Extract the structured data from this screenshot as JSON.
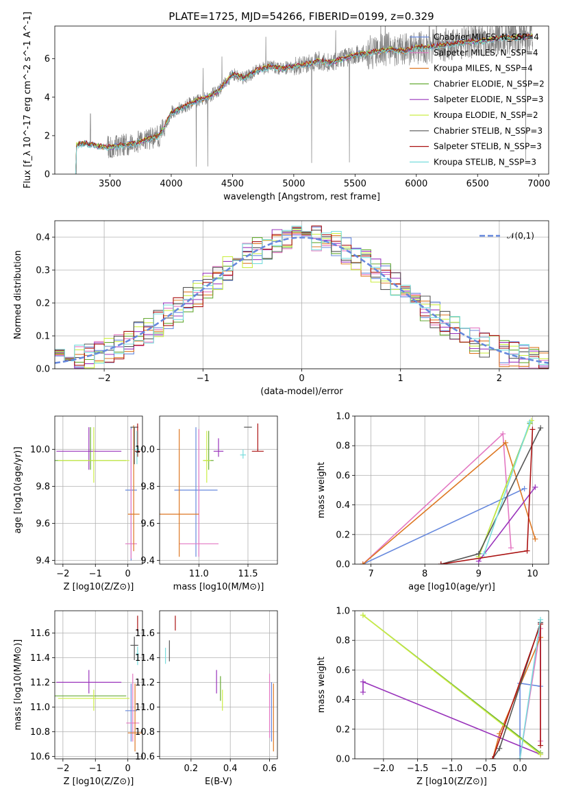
{
  "figure": {
    "title": "PLATE=1725, MJD=54266, FIBERID=0199, z=0.329"
  },
  "colors": {
    "data_gray": "#808080",
    "Chabrier MILES": "#6688dd",
    "Salpeter MILES": "#e377c2",
    "Kroupa MILES": "#dd7722",
    "Chabrier ELODIE": "#66aa33",
    "Salpeter ELODIE": "#9933bb",
    "Kroupa ELODIE": "#ccee44",
    "Chabrier STELIB": "#555555",
    "Salpeter STELIB": "#aa1111",
    "Kroupa STELIB": "#77dddd",
    "normal": "#6688dd"
  },
  "chart_data": [
    {
      "id": "spectrum",
      "type": "line",
      "xlabel": "wavelength [Angstrom, rest frame]",
      "ylabel": "Flux [f_λ 10^-17 erg cm^-2 s^-1 A^-1]",
      "xlim": [
        3050,
        7080
      ],
      "ylim": [
        0,
        7.7
      ],
      "xticks": [
        3500,
        4000,
        4500,
        5000,
        5500,
        6000,
        6500,
        7000
      ],
      "yticks": [
        0,
        2,
        4,
        6
      ],
      "grid": false,
      "legend_position": "upper right",
      "data_range": [
        3220,
        6950
      ],
      "continuum_x": [
        3220,
        3300,
        3400,
        3500,
        3600,
        3700,
        3800,
        3900,
        3950,
        4000,
        4100,
        4200,
        4300,
        4400,
        4500,
        4600,
        4700,
        4800,
        4900,
        5000,
        5100,
        5200,
        5300,
        5400,
        5500,
        5600,
        5700,
        5800,
        5900,
        6000,
        6100,
        6200,
        6300,
        6400,
        6500,
        6600,
        6700,
        6800,
        6950
      ],
      "continuum_y": [
        1.5,
        1.6,
        1.45,
        1.4,
        1.5,
        1.6,
        1.8,
        2.0,
        2.5,
        3.2,
        3.5,
        3.8,
        4.0,
        4.4,
        5.2,
        5.0,
        5.4,
        5.6,
        5.5,
        5.6,
        5.7,
        5.9,
        5.8,
        6.0,
        6.2,
        6.3,
        6.4,
        6.5,
        6.4,
        6.6,
        6.6,
        6.7,
        6.8,
        6.9,
        6.9,
        7.0,
        7.1,
        7.1,
        7.2
      ],
      "series": [
        {
          "label": "Chabrier MILES, N_SSP=4",
          "offset": 0.05
        },
        {
          "label": "Salpeter MILES, N_SSP=4",
          "offset": 0.0
        },
        {
          "label": "Kroupa MILES, N_SSP=4",
          "offset": -0.05
        },
        {
          "label": "Chabrier ELODIE, N_SSP=2",
          "offset": 0.02
        },
        {
          "label": "Salpeter ELODIE, N_SSP=3",
          "offset": -0.03
        },
        {
          "label": "Kroupa ELODIE, N_SSP=2",
          "offset": 0.03
        },
        {
          "label": "Chabrier STELIB, N_SSP=3",
          "offset": -0.02
        },
        {
          "label": "Salpeter STELIB, N_SSP=3",
          "offset": 0.04
        },
        {
          "label": "Kroupa STELIB, N_SSP=3",
          "offset": -0.08
        }
      ]
    },
    {
      "id": "residuals",
      "type": "histogram",
      "xlabel": "(data-model)/error",
      "ylabel": "Normed distribution",
      "xlim": [
        -2.5,
        2.5
      ],
      "ylim": [
        0,
        0.45
      ],
      "xticks": [
        -2,
        -1,
        0,
        1,
        2
      ],
      "yticks": [
        0.0,
        0.1,
        0.2,
        0.3,
        0.4
      ],
      "grid": true,
      "bin_width": 0.1,
      "normal_label": "𝒩(0,1)",
      "legend_position": "upper right"
    },
    {
      "id": "Z-age",
      "type": "scatter-errorbar",
      "xlabel": "Z [log10(Z/Z⊙)]",
      "ylabel": "age  [log10(age/yr)]",
      "xlim": [
        -2.25,
        0.45
      ],
      "ylim": [
        9.38,
        10.18
      ],
      "xticks": [
        -2,
        -1,
        0
      ],
      "yticks": [
        9.4,
        9.6,
        9.8,
        10.0
      ],
      "grid": true,
      "points": [
        {
          "series": "Chabrier MILES",
          "x": 0.1,
          "y": 9.78,
          "xerr": 0.18,
          "yerr": [
            0.38,
            0.34
          ]
        },
        {
          "series": "Salpeter MILES",
          "x": 0.1,
          "y": 9.49,
          "xerr": 0.18,
          "yerr": [
            0.08,
            0.62
          ]
        },
        {
          "series": "Kroupa MILES",
          "x": 0.18,
          "y": 9.65,
          "xerr": 0.18,
          "yerr": [
            0.2,
            0.48
          ]
        },
        {
          "series": "Chabrier ELODIE",
          "x": -1.15,
          "y": 9.94,
          "xerr": 1.1,
          "yerr": [
            0.05,
            0.18
          ]
        },
        {
          "series": "Salpeter ELODIE",
          "x": -1.2,
          "y": 9.99,
          "xerr": 1.0,
          "yerr": [
            0.1,
            0.13
          ]
        },
        {
          "series": "Kroupa ELODIE",
          "x": -1.05,
          "y": 9.94,
          "xerr": 1.1,
          "yerr": [
            0.12,
            0.18
          ]
        },
        {
          "series": "Chabrier STELIB",
          "x": 0.2,
          "y": 10.12,
          "xerr": 0.12,
          "yerr": [
            0.2,
            0.0
          ]
        },
        {
          "series": "Salpeter STELIB",
          "x": 0.3,
          "y": 9.99,
          "xerr": 0.08,
          "yerr": [
            0.03,
            0.15
          ]
        },
        {
          "series": "Kroupa STELIB",
          "x": 0.28,
          "y": 10.0,
          "xerr": 0.06,
          "yerr": [
            0.08,
            0.1
          ]
        }
      ]
    },
    {
      "id": "mass-age",
      "type": "scatter-errorbar",
      "xlabel": "mass [log10(M/M⊙)]",
      "ylabel": "",
      "xlim": [
        10.6,
        11.8
      ],
      "ylim": [
        9.38,
        10.18
      ],
      "xticks": [
        11.0,
        11.5
      ],
      "yticks": [
        9.4,
        9.6,
        9.8,
        10.0
      ],
      "grid": true,
      "points": [
        {
          "series": "Chabrier MILES",
          "x": 10.97,
          "y": 9.78,
          "xerr": 0.22,
          "yerr": [
            0.36,
            0.34
          ]
        },
        {
          "series": "Salpeter MILES",
          "x": 11.0,
          "y": 9.49,
          "xerr": 0.2,
          "yerr": [
            0.07,
            0.62
          ]
        },
        {
          "series": "Kroupa MILES",
          "x": 10.8,
          "y": 9.65,
          "xerr": 0.2,
          "yerr": [
            0.23,
            0.46
          ]
        },
        {
          "series": "Chabrier ELODIE",
          "x": 11.1,
          "y": 9.94,
          "xerr": 0.05,
          "yerr": [
            0.05,
            0.16
          ]
        },
        {
          "series": "Salpeter ELODIE",
          "x": 11.2,
          "y": 9.99,
          "xerr": 0.05,
          "yerr": [
            0.03,
            0.07
          ]
        },
        {
          "series": "Kroupa ELODIE",
          "x": 11.08,
          "y": 9.94,
          "xerr": 0.04,
          "yerr": [
            0.12,
            0.16
          ]
        },
        {
          "series": "Chabrier STELIB",
          "x": 11.5,
          "y": 10.12,
          "xerr": 0.04,
          "yerr": [
            0.0,
            0.0
          ]
        },
        {
          "series": "Salpeter STELIB",
          "x": 11.6,
          "y": 9.99,
          "xerr": 0.06,
          "yerr": [
            0.0,
            0.15
          ]
        },
        {
          "series": "Kroupa STELIB",
          "x": 11.45,
          "y": 9.97,
          "xerr": 0.03,
          "yerr": [
            0.02,
            0.03
          ]
        }
      ]
    },
    {
      "id": "age-weight",
      "type": "line",
      "xlabel": "age  [log10(age/yr)]",
      "ylabel": "mass weight",
      "xlim": [
        6.7,
        10.3
      ],
      "ylim": [
        0,
        1.0
      ],
      "xticks": [
        7,
        8,
        9,
        10
      ],
      "yticks": [
        0.0,
        0.2,
        0.4,
        0.6,
        0.8,
        1.0
      ],
      "grid": true,
      "series": [
        {
          "series": "Chabrier MILES",
          "x": [
            6.85,
            9.85
          ],
          "y": [
            0.0,
            0.51
          ]
        },
        {
          "series": "Salpeter MILES",
          "x": [
            6.85,
            9.45,
            9.6
          ],
          "y": [
            0.0,
            0.88,
            0.11
          ]
        },
        {
          "series": "Kroupa MILES",
          "x": [
            6.85,
            9.5,
            10.05
          ],
          "y": [
            0.0,
            0.82,
            0.17
          ]
        },
        {
          "series": "Chabrier ELODIE",
          "x": [
            9.0,
            9.95
          ],
          "y": [
            0.05,
            0.95
          ]
        },
        {
          "series": "Salpeter ELODIE",
          "x": [
            9.0,
            10.05
          ],
          "y": [
            0.02,
            0.52
          ]
        },
        {
          "series": "Kroupa ELODIE",
          "x": [
            9.0,
            9.98
          ],
          "y": [
            0.05,
            0.97
          ]
        },
        {
          "series": "Chabrier STELIB",
          "x": [
            8.3,
            9.0,
            10.15
          ],
          "y": [
            0.0,
            0.07,
            0.92
          ]
        },
        {
          "series": "Salpeter STELIB",
          "x": [
            8.3,
            9.9,
            10.0
          ],
          "y": [
            0.0,
            0.09,
            0.91
          ]
        },
        {
          "series": "Kroupa STELIB",
          "x": [
            9.1,
            9.95
          ],
          "y": [
            0.07,
            0.96
          ]
        }
      ]
    },
    {
      "id": "Z-mass",
      "type": "scatter-errorbar",
      "xlabel": "Z [log10(Z/Z⊙)]",
      "ylabel": "mass [log10(M/M⊙)]",
      "xlim": [
        -2.25,
        0.45
      ],
      "ylim": [
        10.58,
        11.78
      ],
      "xticks": [
        -2,
        -1,
        0
      ],
      "yticks": [
        10.6,
        10.8,
        11.0,
        11.2,
        11.4,
        11.6
      ],
      "grid": true,
      "points": [
        {
          "series": "Chabrier MILES",
          "x": 0.1,
          "y": 10.97,
          "xerr": 0.18,
          "yerr": [
            0.25,
            0.22
          ]
        },
        {
          "series": "Salpeter MILES",
          "x": 0.15,
          "y": 10.87,
          "xerr": 0.2,
          "yerr": [
            0.15,
            0.4
          ]
        },
        {
          "series": "Kroupa MILES",
          "x": 0.22,
          "y": 10.79,
          "xerr": 0.22,
          "yerr": [
            0.15,
            0.4
          ]
        },
        {
          "series": "Chabrier ELODIE",
          "x": -1.15,
          "y": 11.09,
          "xerr": 1.1,
          "yerr": [
            0.0,
            0.0
          ]
        },
        {
          "series": "Salpeter ELODIE",
          "x": -1.2,
          "y": 11.2,
          "xerr": 1.0,
          "yerr": [
            0.09,
            0.1
          ]
        },
        {
          "series": "Kroupa ELODIE",
          "x": -1.05,
          "y": 11.07,
          "xerr": 1.1,
          "yerr": [
            0.1,
            0.07
          ]
        },
        {
          "series": "Chabrier STELIB",
          "x": 0.2,
          "y": 11.5,
          "xerr": 0.12,
          "yerr": [
            0.12,
            0.07
          ]
        },
        {
          "series": "Salpeter STELIB",
          "x": 0.3,
          "y": 11.62,
          "xerr": 0.02,
          "yerr": [
            0.0,
            0.12
          ]
        },
        {
          "series": "Kroupa STELIB",
          "x": 0.3,
          "y": 11.43,
          "xerr": 0.05,
          "yerr": [
            0.09,
            0.06
          ]
        }
      ]
    },
    {
      "id": "ebv-mass",
      "type": "scatter-errorbar",
      "xlabel": "E(B-V)",
      "ylabel": "",
      "xlim": [
        0.04,
        0.64
      ],
      "ylim": [
        10.58,
        11.78
      ],
      "xticks": [
        0.2,
        0.4,
        0.6
      ],
      "yticks": [
        10.6,
        10.8,
        11.0,
        11.2,
        11.4,
        11.6
      ],
      "grid": true,
      "points": [
        {
          "series": "Chabrier MILES",
          "x": 0.61,
          "y": 10.97,
          "xerr": 0.0,
          "yerr": [
            0.25,
            0.23
          ]
        },
        {
          "series": "Salpeter MILES",
          "x": 0.6,
          "y": 10.87,
          "xerr": 0.0,
          "yerr": [
            0.12,
            0.4
          ]
        },
        {
          "series": "Kroupa MILES",
          "x": 0.62,
          "y": 10.79,
          "xerr": 0.0,
          "yerr": [
            0.15,
            0.4
          ]
        },
        {
          "series": "Chabrier ELODIE",
          "x": 0.35,
          "y": 11.1,
          "xerr": 0.0,
          "yerr": [
            0.05,
            0.15
          ]
        },
        {
          "series": "Salpeter ELODIE",
          "x": 0.33,
          "y": 11.2,
          "xerr": 0.0,
          "yerr": [
            0.09,
            0.1
          ]
        },
        {
          "series": "Kroupa ELODIE",
          "x": 0.36,
          "y": 11.07,
          "xerr": 0.0,
          "yerr": [
            0.1,
            0.07
          ]
        },
        {
          "series": "Chabrier STELIB",
          "x": 0.09,
          "y": 11.47,
          "xerr": 0.0,
          "yerr": [
            0.1,
            0.07
          ]
        },
        {
          "series": "Salpeter STELIB",
          "x": 0.12,
          "y": 11.62,
          "xerr": 0.0,
          "yerr": [
            0.0,
            0.12
          ]
        },
        {
          "series": "Kroupa STELIB",
          "x": 0.07,
          "y": 11.43,
          "xerr": 0.0,
          "yerr": [
            0.08,
            0.05
          ]
        }
      ]
    },
    {
      "id": "Z-weight",
      "type": "line",
      "xlabel": "Z [log10(Z/Z⊙)]",
      "ylabel": "mass weight",
      "xlim": [
        -2.42,
        0.42
      ],
      "ylim": [
        0,
        1.0
      ],
      "xticks": [
        -2.0,
        -1.5,
        -1.0,
        -0.5,
        0.0
      ],
      "yticks": [
        0.0,
        0.2,
        0.4,
        0.6,
        0.8,
        1.0
      ],
      "grid": true,
      "series": [
        {
          "series": "Chabrier MILES",
          "x": [
            0.0,
            0.0,
            0.3,
            0.3
          ],
          "y": [
            0.0,
            0.51,
            0.49,
            0.92
          ]
        },
        {
          "series": "Salpeter MILES",
          "x": [
            0.0,
            0.3,
            0.3
          ],
          "y": [
            0.0,
            0.88,
            0.12
          ]
        },
        {
          "series": "Kroupa MILES",
          "x": [
            -0.4,
            -0.3,
            0.3
          ],
          "y": [
            0.0,
            0.17,
            0.82
          ]
        },
        {
          "series": "Chabrier ELODIE",
          "x": [
            -2.3,
            0.3
          ],
          "y": [
            0.97,
            0.04
          ]
        },
        {
          "series": "Salpeter ELODIE",
          "x": [
            -2.3,
            -2.3,
            0.3
          ],
          "y": [
            0.45,
            0.52,
            0.03
          ]
        },
        {
          "series": "Kroupa ELODIE",
          "x": [
            -2.3,
            0.3
          ],
          "y": [
            0.97,
            0.03
          ]
        },
        {
          "series": "Chabrier STELIB",
          "x": [
            -0.4,
            -0.3,
            0.3
          ],
          "y": [
            0.0,
            0.07,
            0.92
          ]
        },
        {
          "series": "Salpeter STELIB",
          "x": [
            -0.4,
            0.3,
            0.3
          ],
          "y": [
            0.0,
            0.91,
            0.09
          ]
        },
        {
          "series": "Kroupa STELIB",
          "x": [
            0.0,
            0.3
          ],
          "y": [
            0.0,
            0.94
          ]
        }
      ]
    }
  ]
}
